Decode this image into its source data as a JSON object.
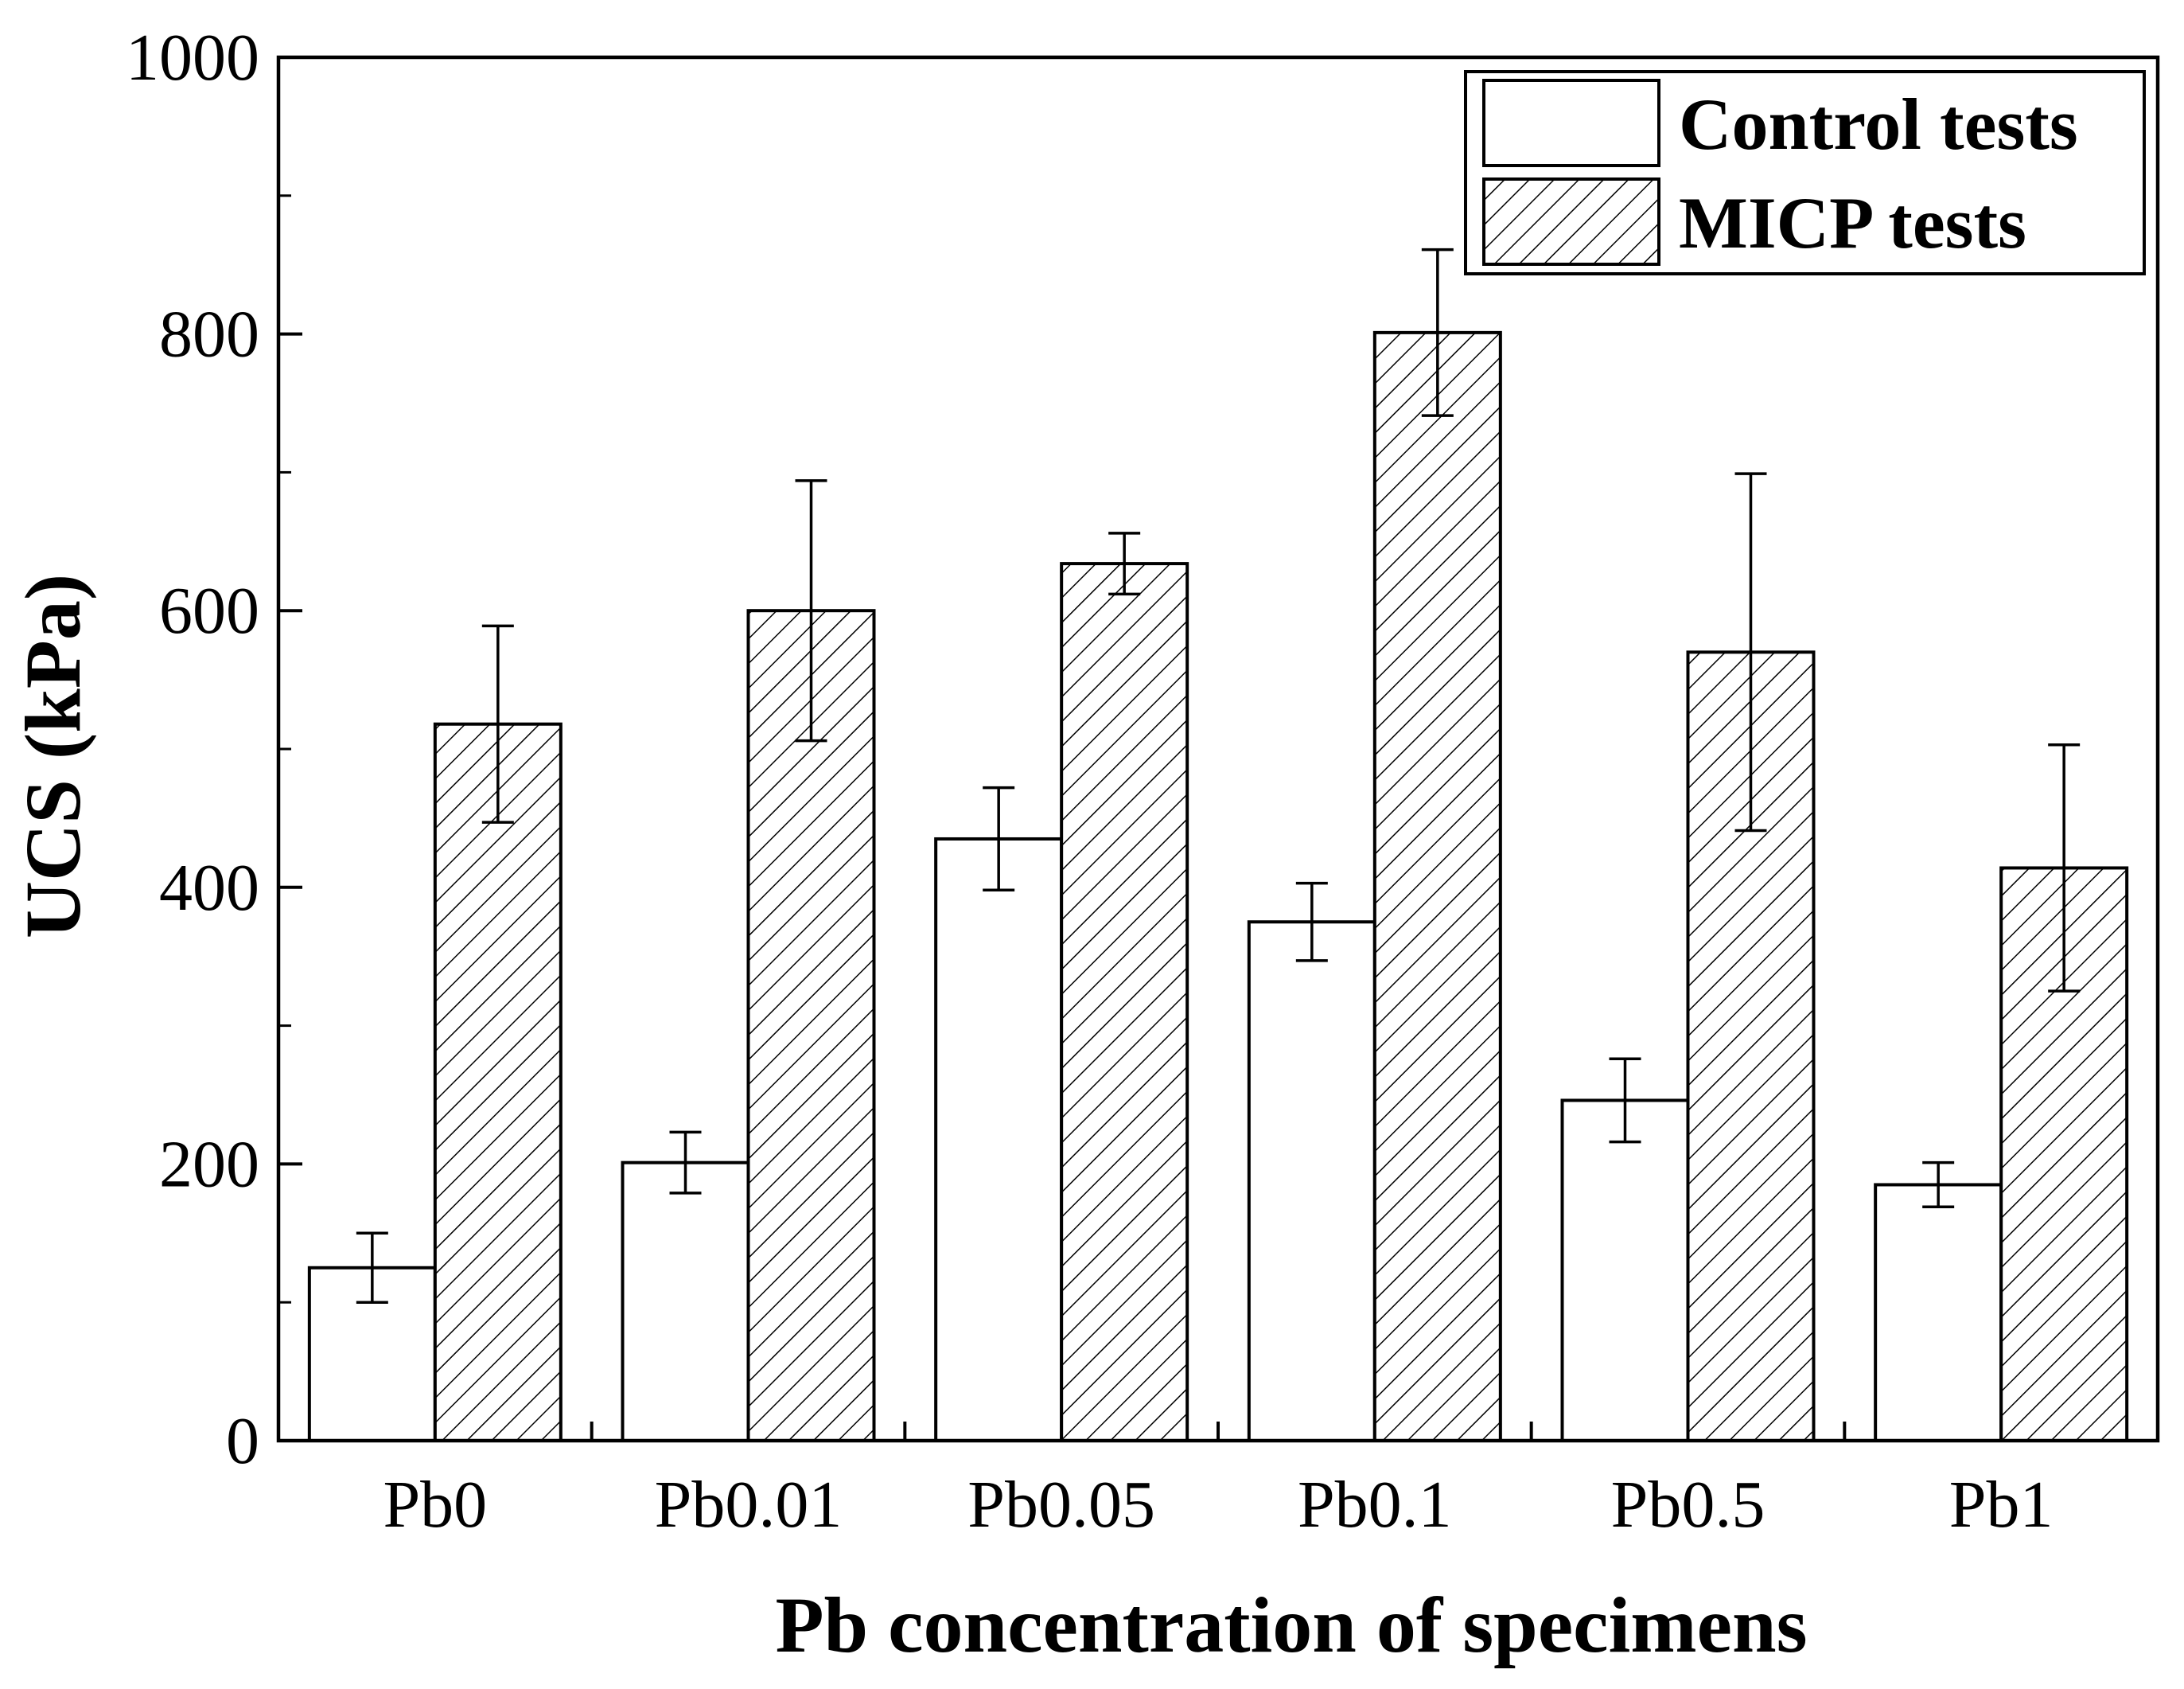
{
  "chart_data": {
    "type": "bar",
    "title": "",
    "xlabel": "Pb concentration of specimens",
    "ylabel": "UCS (kPa)",
    "ylim": [
      0,
      1000
    ],
    "yticks": [
      0,
      200,
      400,
      600,
      800,
      1000
    ],
    "yticks_labels": [
      "0",
      "200",
      "400",
      "600",
      "800",
      "1000"
    ],
    "categories": [
      "Pb0",
      "Pb0.01",
      "Pb0.05",
      "Pb0.1",
      "Pb0.5",
      "Pb1"
    ],
    "series": [
      {
        "name": "Control tests",
        "fill": "open",
        "values": [
          125,
          201,
          435,
          375,
          246,
          185
        ],
        "errors": [
          25,
          22,
          37,
          28,
          30,
          16
        ]
      },
      {
        "name": "MICP tests",
        "fill": "hatched",
        "values": [
          518,
          600,
          634,
          801,
          570,
          414
        ],
        "errors": [
          71,
          94,
          22,
          60,
          129,
          89
        ]
      }
    ],
    "legend_position": "top-right",
    "grid": false,
    "colors": {
      "axis": "#000000",
      "bar_fill": "#ffffff",
      "hatch": "#000000"
    }
  }
}
